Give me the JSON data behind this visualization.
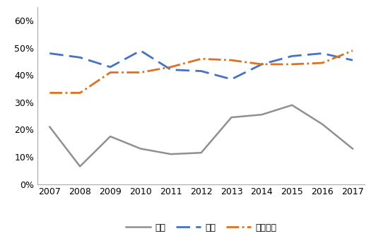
{
  "years": [
    2007,
    2008,
    2009,
    2010,
    2011,
    2012,
    2013,
    2014,
    2015,
    2016,
    2017
  ],
  "huodian": [
    0.21,
    0.065,
    0.175,
    0.13,
    0.11,
    0.115,
    0.245,
    0.255,
    0.29,
    0.22,
    0.13
  ],
  "shuidian": [
    0.48,
    0.465,
    0.43,
    0.49,
    0.42,
    0.415,
    0.385,
    0.44,
    0.47,
    0.48,
    0.455
  ],
  "shipin": [
    0.335,
    0.335,
    0.41,
    0.41,
    0.43,
    0.46,
    0.455,
    0.44,
    0.44,
    0.445,
    0.49
  ],
  "huodian_color": "#909090",
  "shuidian_color": "#4472c4",
  "shipin_color": "#e07020",
  "ylim": [
    0,
    0.65
  ],
  "yticks": [
    0.0,
    0.1,
    0.2,
    0.3,
    0.4,
    0.5,
    0.6
  ],
  "ytick_labels": [
    "0%",
    "10%",
    "20%",
    "30%",
    "40%",
    "50%",
    "60%"
  ],
  "legend_labels": [
    "火电",
    "水电",
    "食品饮料"
  ],
  "figsize": [
    5.32,
    3.34
  ],
  "dpi": 100
}
